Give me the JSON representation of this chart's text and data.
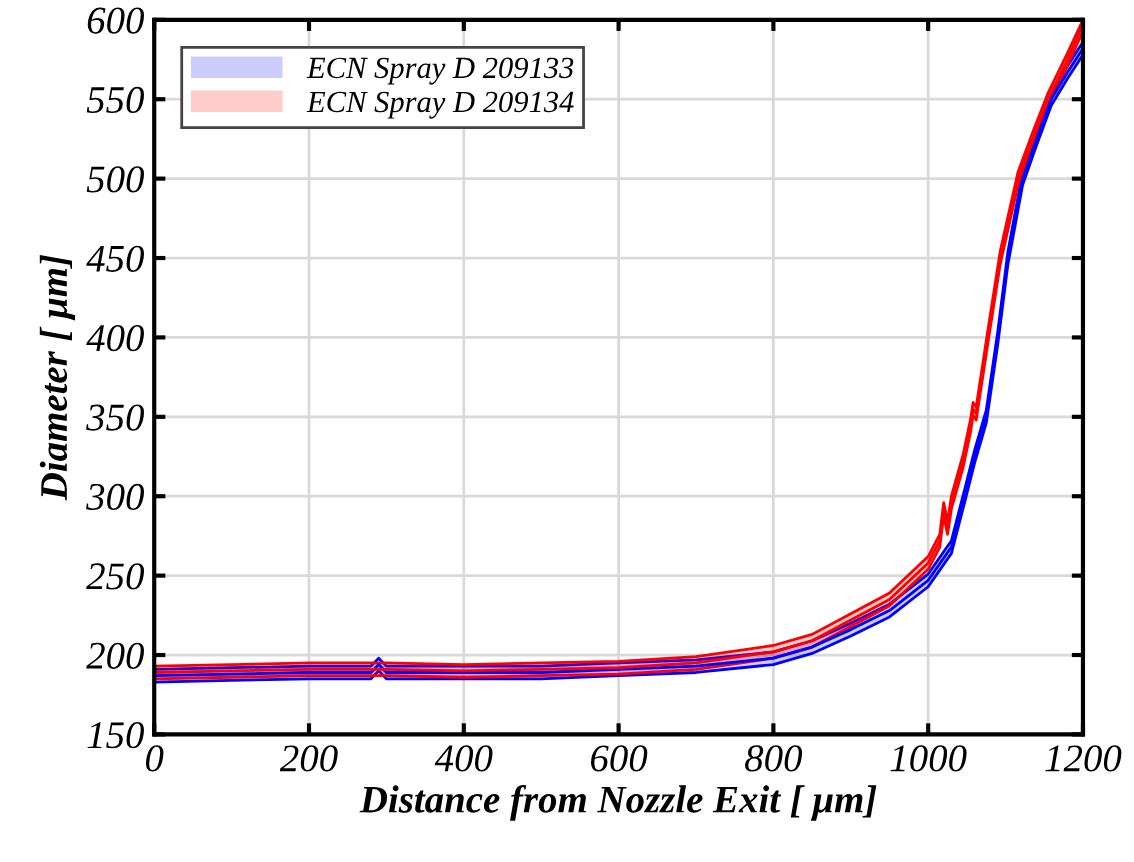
{
  "chart_data": {
    "type": "line",
    "xlabel": "Distance from Nozzle Exit [ μm]",
    "ylabel": "Diameter [ μm]",
    "xlim": [
      0,
      1200
    ],
    "ylim": [
      150,
      600
    ],
    "xticks": [
      0,
      200,
      400,
      600,
      800,
      1000,
      1200
    ],
    "yticks": [
      150,
      200,
      250,
      300,
      350,
      400,
      450,
      500,
      550,
      600
    ],
    "grid": true,
    "legend": "top left",
    "series": [
      {
        "name": "ECN Spray D 209133",
        "color": "#0000ff",
        "x": [
          0,
          100,
          200,
          280,
          290,
          300,
          400,
          500,
          600,
          700,
          800,
          850,
          900,
          950,
          1000,
          1030,
          1047,
          1060,
          1075,
          1090,
          1103,
          1122,
          1140,
          1159,
          1180,
          1200
        ],
        "values": [
          187,
          188,
          189,
          189,
          194,
          189,
          189,
          189,
          191,
          193,
          198,
          205,
          216,
          228,
          247,
          268,
          300,
          325,
          350,
          400,
          450,
          500,
          525,
          550,
          567,
          582
        ],
        "lower": [
          183,
          184,
          185,
          185,
          190,
          185,
          185,
          185,
          187,
          189,
          194,
          201,
          212,
          224,
          243,
          264,
          296,
          321,
          346,
          396,
          446,
          496,
          521,
          546,
          563,
          578
        ],
        "upper": [
          191,
          192,
          193,
          193,
          198,
          193,
          193,
          193,
          195,
          197,
          202,
          209,
          220,
          232,
          251,
          272,
          304,
          329,
          354,
          404,
          454,
          504,
          529,
          554,
          571,
          586
        ]
      },
      {
        "name": "ECN Spray D 209134",
        "color": "#ff0000",
        "x": [
          0,
          100,
          200,
          300,
          400,
          500,
          600,
          700,
          800,
          850,
          900,
          950,
          1000,
          1015,
          1020,
          1025,
          1030,
          1045,
          1055,
          1058,
          1062,
          1077,
          1093,
          1116,
          1135,
          1155,
          1180,
          1200
        ],
        "values": [
          189,
          190,
          191,
          191,
          190,
          191,
          192,
          195,
          202,
          209,
          222,
          235,
          258,
          272,
          292,
          280,
          296,
          322,
          345,
          355,
          352,
          400,
          450,
          500,
          525,
          550,
          575,
          597
        ],
        "lower": [
          185,
          186,
          187,
          187,
          186,
          187,
          188,
          191,
          198,
          205,
          218,
          231,
          254,
          268,
          288,
          276,
          292,
          318,
          341,
          351,
          348,
          396,
          446,
          496,
          521,
          546,
          571,
          593
        ],
        "upper": [
          193,
          194,
          195,
          195,
          194,
          195,
          196,
          199,
          206,
          213,
          226,
          239,
          262,
          276,
          296,
          284,
          300,
          326,
          349,
          359,
          356,
          404,
          454,
          504,
          529,
          554,
          579,
          600
        ]
      }
    ]
  }
}
